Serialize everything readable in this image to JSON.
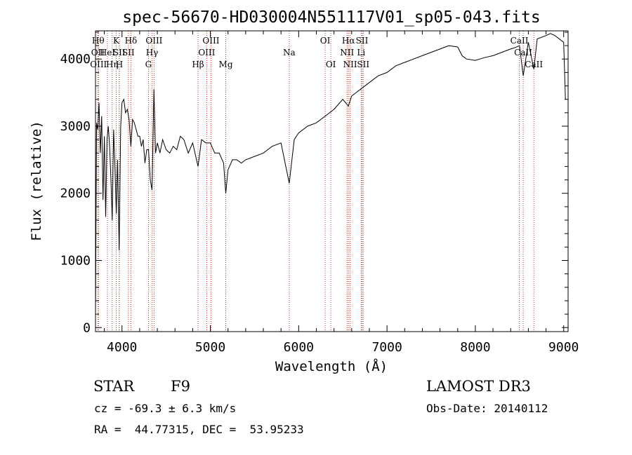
{
  "chart_data": {
    "type": "line",
    "title": "spec-56670-HD030004N551117V01_sp05-043.fits",
    "xlabel": "Wavelength (Å)",
    "ylabel": "Flux (relative)",
    "xlim": [
      3700,
      9050
    ],
    "ylim": [
      -60,
      4420
    ],
    "x_ticks": [
      4000,
      5000,
      6000,
      7000,
      8000,
      9000
    ],
    "y_ticks": [
      0,
      1000,
      2000,
      3000,
      4000
    ],
    "grid": false,
    "legend": "none",
    "line_color": "#000000",
    "marker_line_color": "#c0392b",
    "series": [
      {
        "x": [
          3700,
          3712,
          3725,
          3740,
          3755,
          3770,
          3785,
          3800,
          3815,
          3830,
          3845,
          3860,
          3875,
          3889,
          3905,
          3920,
          3935,
          3950,
          3968,
          3985,
          4000,
          4020,
          4040,
          4060,
          4080,
          4101,
          4120,
          4140,
          4160,
          4180,
          4200,
          4220,
          4240,
          4260,
          4280,
          4300,
          4320,
          4340,
          4361,
          4380,
          4400,
          4430,
          4460,
          4500,
          4540,
          4580,
          4620,
          4660,
          4700,
          4750,
          4800,
          4861,
          4900,
          4950,
          5000,
          5050,
          5100,
          5150,
          5175,
          5200,
          5250,
          5300,
          5350,
          5400,
          5500,
          5600,
          5700,
          5800,
          5893,
          5950,
          6000,
          6100,
          6200,
          6300,
          6400,
          6500,
          6563,
          6600,
          6650,
          6700,
          6800,
          6900,
          7000,
          7100,
          7200,
          7300,
          7400,
          7500,
          7600,
          7700,
          7800,
          7850,
          7900,
          8000,
          8100,
          8200,
          8300,
          8400,
          8450,
          8500,
          8542,
          8600,
          8662,
          8700,
          8800,
          8850,
          8900,
          8950,
          9000,
          9020
        ],
        "y": [
          200,
          3050,
          2950,
          3350,
          2600,
          3150,
          1900,
          2850,
          1650,
          2800,
          3000,
          2700,
          2200,
          1600,
          2950,
          2400,
          1700,
          2500,
          1150,
          3000,
          3350,
          3400,
          3200,
          3250,
          3100,
          2700,
          3100,
          3050,
          2950,
          2850,
          2850,
          2700,
          2800,
          2450,
          2650,
          2650,
          2200,
          2050,
          3550,
          2600,
          2750,
          2600,
          2800,
          2650,
          2600,
          2700,
          2650,
          2850,
          2800,
          2600,
          2750,
          2400,
          2800,
          2750,
          2750,
          2600,
          2600,
          2450,
          2000,
          2350,
          2500,
          2500,
          2450,
          2500,
          2550,
          2600,
          2700,
          2750,
          2150,
          2800,
          2900,
          3000,
          3050,
          3150,
          3250,
          3400,
          3300,
          3450,
          3500,
          3550,
          3650,
          3750,
          3800,
          3900,
          3950,
          4000,
          4050,
          4100,
          4150,
          4200,
          4180,
          4050,
          4000,
          3980,
          4020,
          4050,
          4100,
          4150,
          4170,
          4200,
          3750,
          4250,
          3850,
          4300,
          4350,
          4380,
          4350,
          4300,
          4250,
          3400
        ]
      }
    ],
    "line_markers": [
      {
        "x": 3730,
        "row": 1,
        "label": "Hθ"
      },
      {
        "x": 3727,
        "row": 2,
        "label": "OII"
      },
      {
        "x": 3734,
        "row": 3,
        "label": "OIII"
      },
      {
        "x": 3835,
        "row": 2,
        "label": "HeI"
      },
      {
        "x": 3889,
        "row": 3,
        "label": "Hη"
      },
      {
        "x": 3934,
        "row": 1,
        "label": "K"
      },
      {
        "x": 3968,
        "row": 2,
        "label": "SII"
      },
      {
        "x": 3970,
        "row": 3,
        "label": "H"
      },
      {
        "x": 4101,
        "row": 1,
        "label": "Hδ"
      },
      {
        "x": 4072,
        "row": 2,
        "label": "SII"
      },
      {
        "x": 4300,
        "row": 3,
        "label": "G"
      },
      {
        "x": 4340,
        "row": 2,
        "label": "Hγ"
      },
      {
        "x": 4363,
        "row": 1,
        "label": "OIII"
      },
      {
        "x": 4861,
        "row": 3,
        "label": "Hβ"
      },
      {
        "x": 4959,
        "row": 2,
        "label": "OIII"
      },
      {
        "x": 5007,
        "row": 1,
        "label": "OIII"
      },
      {
        "x": 5175,
        "row": 3,
        "label": "Mg"
      },
      {
        "x": 5893,
        "row": 2,
        "label": "Na"
      },
      {
        "x": 6300,
        "row": 1,
        "label": "OI"
      },
      {
        "x": 6364,
        "row": 3,
        "label": "OI"
      },
      {
        "x": 6548,
        "row": 2,
        "label": "NII"
      },
      {
        "x": 6563,
        "row": 1,
        "label": "Hα"
      },
      {
        "x": 6583,
        "row": 3,
        "label": "NII"
      },
      {
        "x": 6707,
        "row": 2,
        "label": "Li"
      },
      {
        "x": 6717,
        "row": 1,
        "label": "SII"
      },
      {
        "x": 6731,
        "row": 3,
        "label": "SII"
      },
      {
        "x": 8498,
        "row": 1,
        "label": "CaII"
      },
      {
        "x": 8542,
        "row": 2,
        "label": "CaII"
      },
      {
        "x": 8662,
        "row": 3,
        "label": "CaII"
      }
    ]
  },
  "footer": {
    "object_class": "STAR",
    "subclass": "F9",
    "survey": "LAMOST DR3",
    "redshift_text": "cz = -69.3 ± 6.3 km/s",
    "obs_date_text": "Obs-Date: 20140112",
    "coords_text": "RA =  44.77315, DEC =  53.95233"
  }
}
